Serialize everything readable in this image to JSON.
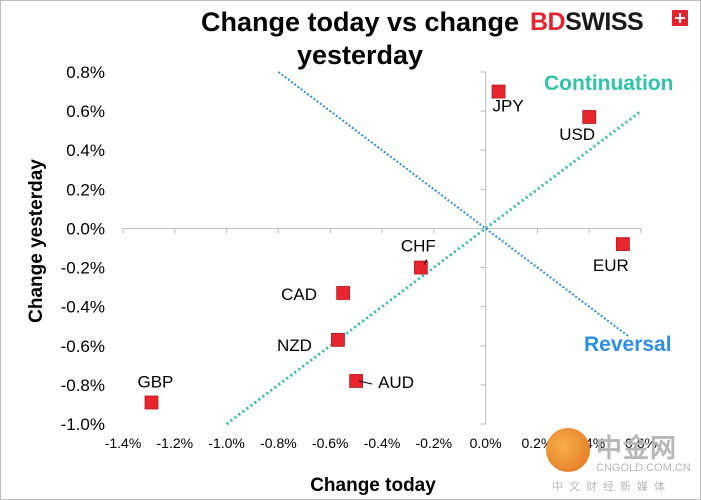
{
  "brand": {
    "logo_red": "BD",
    "logo_dark": "SWISS"
  },
  "watermark": {
    "cn": "中金网",
    "en": "CNGOLD.COM.CN",
    "sub": "中文财经新媒体"
  },
  "chart_data": {
    "type": "scatter",
    "title": "Change today vs change yesterday",
    "xlabel": "Change today",
    "ylabel": "Change yesterday",
    "xlim": [
      -1.4,
      0.6
    ],
    "ylim": [
      -1.0,
      0.8
    ],
    "x_ticks": [
      "-1.4%",
      "-1.2%",
      "-1.0%",
      "-0.8%",
      "-0.6%",
      "-0.4%",
      "-0.2%",
      "0.0%",
      "0.2%",
      "0.4%",
      "0.6%"
    ],
    "y_ticks": [
      "0.8%",
      "0.6%",
      "0.4%",
      "0.2%",
      "0.0%",
      "-0.2%",
      "-0.4%",
      "-0.6%",
      "-0.8%",
      "-1.0%"
    ],
    "points": [
      {
        "label": "JPY",
        "x": 0.05,
        "y": 0.7
      },
      {
        "label": "USD",
        "x": 0.4,
        "y": 0.57
      },
      {
        "label": "EUR",
        "x": 0.53,
        "y": -0.08
      },
      {
        "label": "CHF",
        "x": -0.25,
        "y": -0.2
      },
      {
        "label": "CAD",
        "x": -0.55,
        "y": -0.33
      },
      {
        "label": "NZD",
        "x": -0.57,
        "y": -0.57
      },
      {
        "label": "AUD",
        "x": -0.5,
        "y": -0.78
      },
      {
        "label": "GBP",
        "x": -1.29,
        "y": -0.89
      }
    ],
    "marker_color": "#e8252e",
    "zones": {
      "continuation": "Continuation",
      "reversal": "Reversal"
    },
    "colors": {
      "continuation": "#2ec4a8",
      "reversal": "#2e8fe6"
    },
    "grid": false
  }
}
